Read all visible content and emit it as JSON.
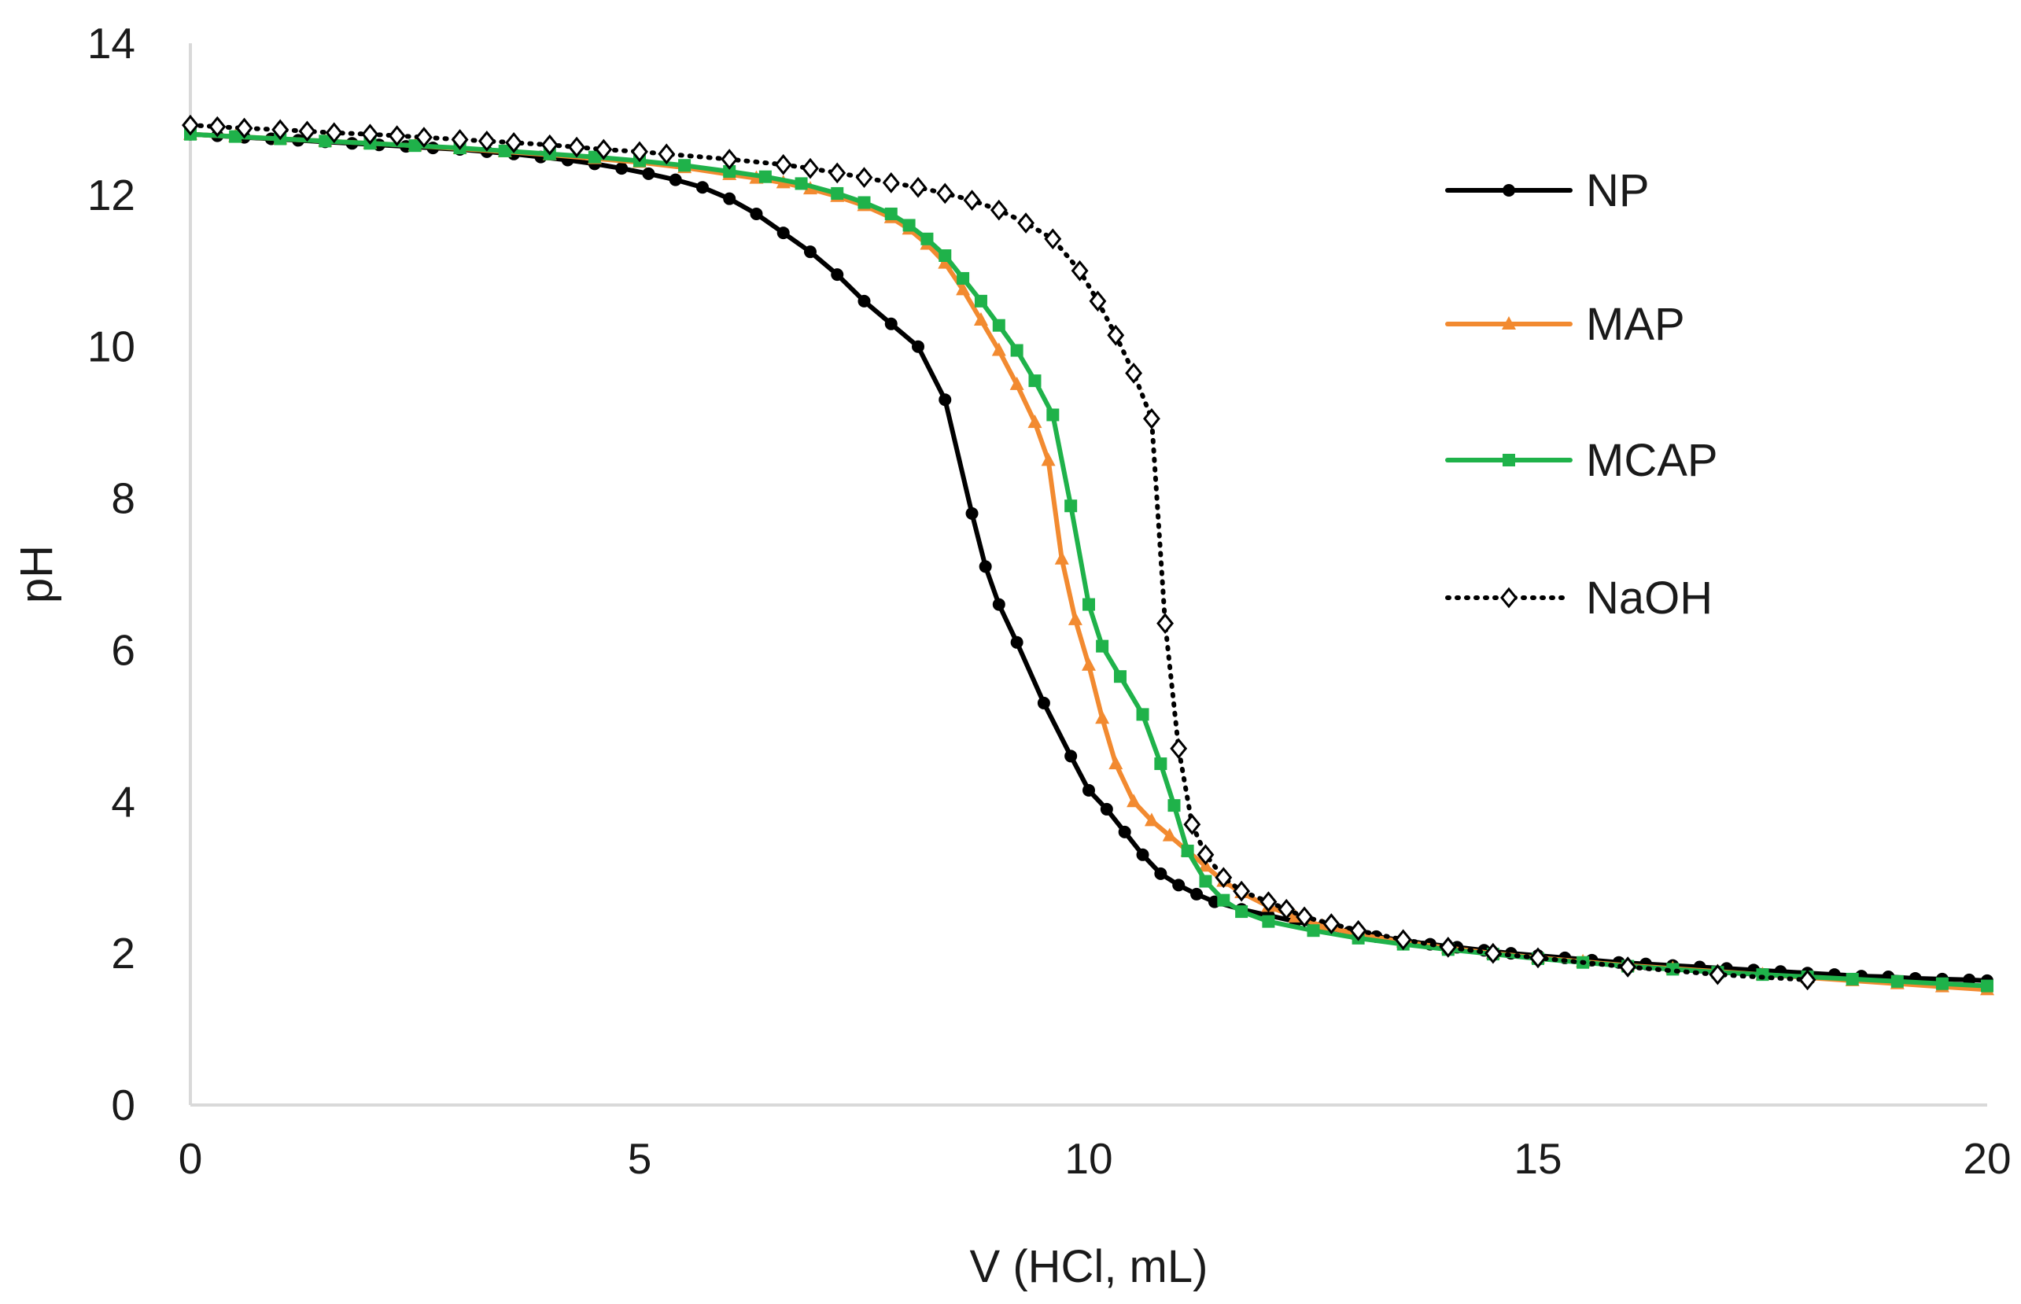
{
  "chart_data": {
    "type": "line",
    "title": "",
    "xlabel": "V (HCl, mL)",
    "ylabel": "pH",
    "xlim": [
      0,
      20
    ],
    "ylim": [
      0,
      14
    ],
    "xticks": [
      0,
      5,
      10,
      15,
      20
    ],
    "yticks": [
      0,
      2,
      4,
      6,
      8,
      10,
      12,
      14
    ],
    "grid": false,
    "legend_position": "right",
    "series": [
      {
        "name": "NP",
        "color": "#000000",
        "marker": "circle",
        "line_style": "solid",
        "x": [
          0,
          0.3,
          0.6,
          0.9,
          1.2,
          1.5,
          1.8,
          2.1,
          2.4,
          2.7,
          3.0,
          3.3,
          3.6,
          3.9,
          4.2,
          4.5,
          4.8,
          5.1,
          5.4,
          5.7,
          6.0,
          6.3,
          6.6,
          6.9,
          7.2,
          7.5,
          7.8,
          8.1,
          8.4,
          8.7,
          8.85,
          9.0,
          9.2,
          9.5,
          9.8,
          10.0,
          10.2,
          10.4,
          10.6,
          10.8,
          11.0,
          11.2,
          11.4,
          11.7,
          12.0,
          12.3,
          12.6,
          12.9,
          13.2,
          13.5,
          13.8,
          14.1,
          14.4,
          14.7,
          15.0,
          15.3,
          15.6,
          15.9,
          16.2,
          16.5,
          16.8,
          17.1,
          17.4,
          17.7,
          18.0,
          18.3,
          18.6,
          18.9,
          19.2,
          19.5,
          19.8,
          20.0
        ],
        "y": [
          12.8,
          12.78,
          12.76,
          12.74,
          12.72,
          12.7,
          12.68,
          12.66,
          12.64,
          12.62,
          12.6,
          12.57,
          12.54,
          12.5,
          12.46,
          12.41,
          12.35,
          12.28,
          12.2,
          12.1,
          11.95,
          11.75,
          11.5,
          11.25,
          10.95,
          10.6,
          10.3,
          10.0,
          9.3,
          7.8,
          7.1,
          6.6,
          6.1,
          5.3,
          4.6,
          4.15,
          3.9,
          3.6,
          3.3,
          3.05,
          2.9,
          2.78,
          2.68,
          2.58,
          2.5,
          2.42,
          2.35,
          2.28,
          2.22,
          2.17,
          2.12,
          2.08,
          2.04,
          2.0,
          1.97,
          1.94,
          1.91,
          1.88,
          1.86,
          1.84,
          1.82,
          1.8,
          1.78,
          1.76,
          1.74,
          1.72,
          1.7,
          1.69,
          1.67,
          1.66,
          1.65,
          1.64
        ]
      },
      {
        "name": "MAP",
        "color": "#f28a30",
        "marker": "triangle",
        "line_style": "solid",
        "x": [
          0,
          0.5,
          1.0,
          1.5,
          2.0,
          2.5,
          3.0,
          3.5,
          4.0,
          4.5,
          5.0,
          5.5,
          6.0,
          6.3,
          6.6,
          6.9,
          7.2,
          7.5,
          7.8,
          8.0,
          8.2,
          8.4,
          8.6,
          8.8,
          9.0,
          9.2,
          9.4,
          9.55,
          9.7,
          9.85,
          10.0,
          10.15,
          10.3,
          10.5,
          10.7,
          10.9,
          11.1,
          11.3,
          11.5,
          11.7,
          12.0,
          12.3,
          12.6,
          13.0,
          13.5,
          14.0,
          14.5,
          15.0,
          15.5,
          16.0,
          16.5,
          17.0,
          17.5,
          18.0,
          18.5,
          19.0,
          19.5,
          20.0
        ],
        "y": [
          12.8,
          12.77,
          12.74,
          12.71,
          12.68,
          12.65,
          12.61,
          12.57,
          12.53,
          12.48,
          12.43,
          12.36,
          12.27,
          12.22,
          12.16,
          12.08,
          11.98,
          11.86,
          11.7,
          11.55,
          11.35,
          11.1,
          10.75,
          10.35,
          9.95,
          9.5,
          9.0,
          8.5,
          7.2,
          6.4,
          5.8,
          5.1,
          4.5,
          4.0,
          3.75,
          3.55,
          3.35,
          3.15,
          2.95,
          2.8,
          2.62,
          2.48,
          2.36,
          2.25,
          2.15,
          2.07,
          2.0,
          1.94,
          1.89,
          1.84,
          1.8,
          1.76,
          1.72,
          1.68,
          1.64,
          1.6,
          1.56,
          1.52
        ]
      },
      {
        "name": "MCAP",
        "color": "#1fb24a",
        "marker": "square",
        "line_style": "solid",
        "x": [
          0,
          0.5,
          1.0,
          1.5,
          2.0,
          2.5,
          3.0,
          3.5,
          4.0,
          4.5,
          5.0,
          5.5,
          6.0,
          6.4,
          6.8,
          7.2,
          7.5,
          7.8,
          8.0,
          8.2,
          8.4,
          8.6,
          8.8,
          9.0,
          9.2,
          9.4,
          9.6,
          9.8,
          10.0,
          10.15,
          10.35,
          10.6,
          10.8,
          10.95,
          11.1,
          11.3,
          11.5,
          11.7,
          12.0,
          12.5,
          13.0,
          13.5,
          14.0,
          14.5,
          15.0,
          15.5,
          16.0,
          16.5,
          17.0,
          17.5,
          18.0,
          18.5,
          19.0,
          19.5,
          20.0
        ],
        "y": [
          12.8,
          12.77,
          12.74,
          12.71,
          12.68,
          12.65,
          12.62,
          12.58,
          12.54,
          12.5,
          12.45,
          12.39,
          12.31,
          12.24,
          12.15,
          12.02,
          11.9,
          11.75,
          11.6,
          11.42,
          11.2,
          10.9,
          10.6,
          10.28,
          9.95,
          9.55,
          9.1,
          7.9,
          6.6,
          6.05,
          5.65,
          5.15,
          4.5,
          3.95,
          3.35,
          2.95,
          2.7,
          2.55,
          2.42,
          2.3,
          2.2,
          2.12,
          2.05,
          1.99,
          1.93,
          1.88,
          1.83,
          1.79,
          1.75,
          1.72,
          1.69,
          1.66,
          1.63,
          1.6,
          1.57
        ]
      },
      {
        "name": "NaOH",
        "color": "#000000",
        "marker": "diamond-open",
        "line_style": "dotted",
        "x": [
          0,
          0.3,
          0.6,
          1.0,
          1.3,
          1.6,
          2.0,
          2.3,
          2.6,
          3.0,
          3.3,
          3.6,
          4.0,
          4.3,
          4.6,
          5.0,
          5.3,
          6.0,
          6.6,
          6.9,
          7.2,
          7.5,
          7.8,
          8.1,
          8.4,
          8.7,
          9.0,
          9.3,
          9.6,
          9.9,
          10.1,
          10.3,
          10.5,
          10.7,
          10.85,
          11.0,
          11.15,
          11.3,
          11.5,
          11.7,
          12.0,
          12.2,
          12.4,
          12.7,
          13.0,
          13.5,
          14.0,
          14.5,
          15.0,
          16.0,
          17.0,
          18.0
        ],
        "y": [
          12.92,
          12.9,
          12.88,
          12.86,
          12.84,
          12.82,
          12.8,
          12.78,
          12.76,
          12.73,
          12.71,
          12.69,
          12.66,
          12.63,
          12.6,
          12.57,
          12.54,
          12.47,
          12.4,
          12.35,
          12.29,
          12.23,
          12.16,
          12.1,
          12.02,
          11.93,
          11.8,
          11.63,
          11.42,
          11.0,
          10.6,
          10.15,
          9.65,
          9.05,
          6.35,
          4.7,
          3.7,
          3.3,
          3.0,
          2.82,
          2.68,
          2.58,
          2.48,
          2.39,
          2.3,
          2.18,
          2.08,
          2.0,
          1.94,
          1.82,
          1.72,
          1.65
        ]
      }
    ]
  }
}
